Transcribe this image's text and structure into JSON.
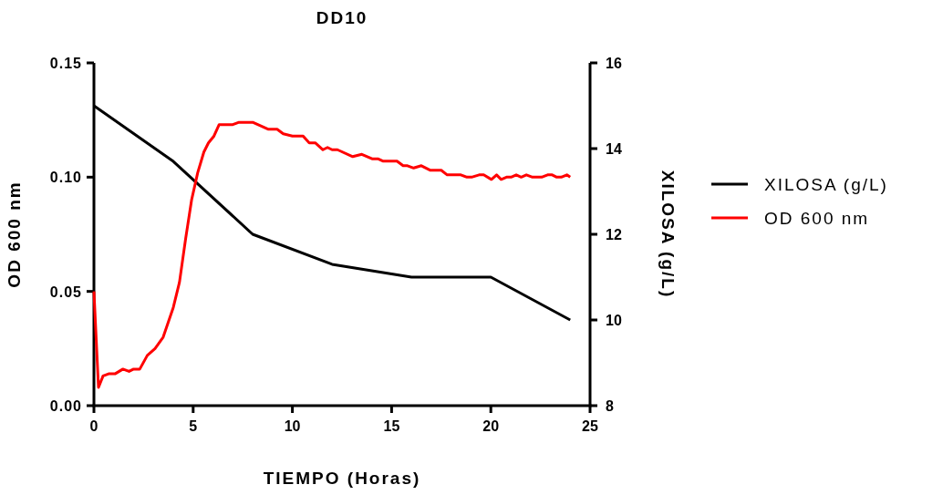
{
  "chart_data": {
    "type": "line",
    "title": "DD10",
    "xlabel": "TIEMPO (Horas)",
    "ylabel": "OD 600 nm",
    "y2label": "XILOSA (g/L)",
    "xlim": [
      0,
      25
    ],
    "xticks": [
      0,
      5,
      10,
      15,
      20,
      25
    ],
    "ylim": [
      0,
      0.15
    ],
    "yticks": [
      {
        "value": 0,
        "label": "0.00"
      },
      {
        "value": 0.05,
        "label": "0.05"
      },
      {
        "value": 0.1,
        "label": "0.10"
      },
      {
        "value": 0.15,
        "label": "0.15"
      }
    ],
    "y2lim": [
      8,
      16
    ],
    "y2ticks": [
      8,
      10,
      12,
      14,
      16
    ],
    "legend": "right",
    "grid": false,
    "marker": "none",
    "line_style": "solid",
    "series": [
      {
        "name": "XILOSA (g/L)",
        "color": "#000000",
        "axis": "y2",
        "x": [
          0,
          4,
          8,
          12,
          16,
          20,
          24
        ],
        "values": [
          15.0,
          13.7,
          12.0,
          11.3,
          11.0,
          11.0,
          10.0
        ]
      },
      {
        "name": "OD 600 nm",
        "color": "#ff0000",
        "x": [
          0,
          0.23,
          0.46,
          0.77,
          1.08,
          1.46,
          1.77,
          2.0,
          2.31,
          2.69,
          3.08,
          3.49,
          4.0,
          4.31,
          4.62,
          4.92,
          5.23,
          5.54,
          5.77,
          6.05,
          6.31,
          7.0,
          7.31,
          8.0,
          8.77,
          9.23,
          9.54,
          10.0,
          10.54,
          10.85,
          11.15,
          11.54,
          11.77,
          12.0,
          12.27,
          13.04,
          13.5,
          14.04,
          14.33,
          14.58,
          15.27,
          15.58,
          15.8,
          16.11,
          16.5,
          16.96,
          17.5,
          17.8,
          18.49,
          18.8,
          19.03,
          19.41,
          19.64,
          20.03,
          20.29,
          20.52,
          20.79,
          21.02,
          21.28,
          21.53,
          21.79,
          22.1,
          22.56,
          22.86,
          23.09,
          23.32,
          23.55,
          23.83,
          24.0
        ],
        "values": [
          0.05,
          0.008,
          0.013,
          0.014,
          0.014,
          0.016,
          0.015,
          0.016,
          0.016,
          0.022,
          0.025,
          0.03,
          0.043,
          0.054,
          0.073,
          0.09,
          0.102,
          0.111,
          0.115,
          0.118,
          0.123,
          0.123,
          0.124,
          0.124,
          0.121,
          0.121,
          0.119,
          0.118,
          0.118,
          0.115,
          0.115,
          0.112,
          0.113,
          0.112,
          0.112,
          0.109,
          0.11,
          0.108,
          0.108,
          0.107,
          0.107,
          0.105,
          0.105,
          0.104,
          0.105,
          0.103,
          0.103,
          0.101,
          0.101,
          0.1,
          0.1,
          0.101,
          0.101,
          0.099,
          0.101,
          0.099,
          0.1,
          0.1,
          0.101,
          0.1,
          0.101,
          0.1,
          0.1,
          0.101,
          0.101,
          0.1,
          0.1,
          0.101,
          0.1
        ]
      }
    ]
  }
}
